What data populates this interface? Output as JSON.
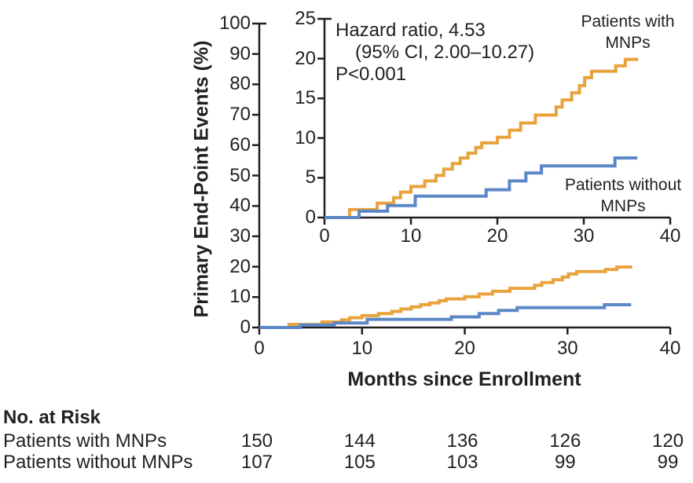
{
  "axes": {
    "y_title": "Primary End-Point Events (%)",
    "x_title": "Months since Enrollment"
  },
  "annotation": {
    "line1": "Hazard ratio, 4.53",
    "line2": "(95% CI, 2.00–10.27)",
    "line3": "P<0.001"
  },
  "series_labels": {
    "with_mnps": [
      "Patients with",
      "MNPs"
    ],
    "without_mnps": [
      "Patients without",
      "MNPs"
    ]
  },
  "risk_table": {
    "header": "No. at Risk",
    "timepoints": [
      0,
      10,
      20,
      30,
      40
    ],
    "rows": [
      {
        "label": "Patients with MNPs",
        "values": [
          150,
          144,
          136,
          126,
          120
        ]
      },
      {
        "label": "Patients without MNPs",
        "values": [
          107,
          105,
          103,
          99,
          99
        ]
      }
    ]
  },
  "colors": {
    "with_mnps": "#E8A33D",
    "without_mnps": "#5C87C6",
    "axis": "#231F20",
    "text": "#231F20"
  },
  "chart_data": {
    "type": "line",
    "style": "step",
    "xlabel": "Months since Enrollment",
    "ylabel": "Primary End-Point Events (%)",
    "annotation": [
      "Hazard ratio, 4.53",
      "(95% CI, 2.00–10.27)",
      "P<0.001"
    ],
    "series": [
      {
        "name": "Patients with MNPs",
        "color": "#E8A33D",
        "end_x": 36.3,
        "points": [
          [
            0,
            0
          ],
          [
            2.9,
            1.0
          ],
          [
            6.1,
            1.8
          ],
          [
            8.0,
            2.5
          ],
          [
            8.8,
            3.2
          ],
          [
            10.0,
            3.9
          ],
          [
            11.6,
            4.6
          ],
          [
            12.9,
            5.3
          ],
          [
            13.8,
            6.1
          ],
          [
            14.8,
            6.8
          ],
          [
            15.7,
            7.5
          ],
          [
            16.6,
            8.1
          ],
          [
            17.5,
            8.8
          ],
          [
            18.2,
            9.4
          ],
          [
            20.0,
            10.1
          ],
          [
            21.4,
            11.0
          ],
          [
            22.7,
            11.9
          ],
          [
            24.4,
            12.9
          ],
          [
            26.8,
            13.9
          ],
          [
            27.5,
            14.8
          ],
          [
            28.6,
            15.7
          ],
          [
            29.5,
            16.6
          ],
          [
            30.1,
            17.6
          ],
          [
            30.9,
            18.4
          ],
          [
            33.7,
            19.1
          ],
          [
            34.8,
            19.9
          ]
        ]
      },
      {
        "name": "Patients without MNPs",
        "color": "#5C87C6",
        "end_x": 36.2,
        "points": [
          [
            0,
            0
          ],
          [
            4.0,
            0.8
          ],
          [
            7.3,
            1.5
          ],
          [
            10.5,
            2.7
          ],
          [
            18.7,
            3.5
          ],
          [
            21.4,
            4.6
          ],
          [
            23.3,
            5.6
          ],
          [
            25.1,
            6.5
          ],
          [
            33.6,
            7.5
          ]
        ]
      }
    ],
    "views": [
      {
        "id": "main",
        "xlim": [
          0,
          40
        ],
        "ylim": [
          0,
          100
        ],
        "xticks": [
          0,
          10,
          20,
          30,
          40
        ],
        "yticks": [
          0,
          10,
          20,
          30,
          40,
          50,
          60,
          70,
          80,
          90,
          100
        ]
      },
      {
        "id": "inset",
        "xlim": [
          0,
          40
        ],
        "ylim": [
          0,
          25
        ],
        "xticks": [
          0,
          10,
          20,
          30,
          40
        ],
        "yticks": [
          0,
          5,
          10,
          15,
          20,
          25
        ]
      }
    ]
  }
}
